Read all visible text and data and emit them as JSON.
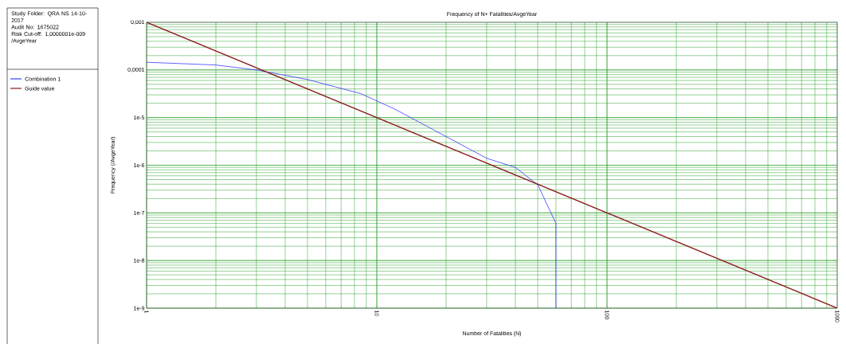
{
  "chart_data": {
    "type": "line",
    "title": "Frequency of N+ Fatalities/AvgeYear",
    "xlabel": "Number of Fatalities (N)",
    "ylabel": "Frequency (/AvgeYear)",
    "annotations": [
      "Study Folder: QRA NS 14-10-2017",
      "Audit No: 1675022",
      "Risk Cut-off: 1,0000001e-009 /AvgeYear"
    ],
    "log": "xy",
    "grid": true,
    "legend": "left",
    "marker": "none",
    "line_style": "solid",
    "xlim": [
      1,
      1000
    ],
    "xticks": [
      1,
      10,
      100,
      1000
    ],
    "ylim": [
      1e-09,
      0.001
    ],
    "yticks": [
      {
        "value": 1e-09,
        "label": "1e-9"
      },
      {
        "value": 1e-08,
        "label": "1e-8"
      },
      {
        "value": 1e-07,
        "label": "1e-7"
      },
      {
        "value": 1e-06,
        "label": "1e-6"
      },
      {
        "value": 1e-05,
        "label": "1e-5"
      },
      {
        "value": 0.0001,
        "label": "0,0001"
      },
      {
        "value": 0.001,
        "label": "0,001"
      }
    ],
    "series": [
      {
        "name": "Combination 1",
        "color": "#3a3aff",
        "x": [
          1,
          2,
          3,
          5,
          8.5,
          12,
          30,
          40,
          50,
          60,
          60
        ],
        "values": [
          0.000145,
          0.000127,
          0.0001,
          6.3e-05,
          3.2e-05,
          1.5e-05,
          1.4e-06,
          9e-07,
          3.9e-07,
          6e-08,
          1e-09
        ]
      },
      {
        "name": "Guide value",
        "color": "#8b1a1a",
        "x": [
          1,
          1000
        ],
        "values": [
          0.001,
          1e-09
        ]
      }
    ]
  }
}
